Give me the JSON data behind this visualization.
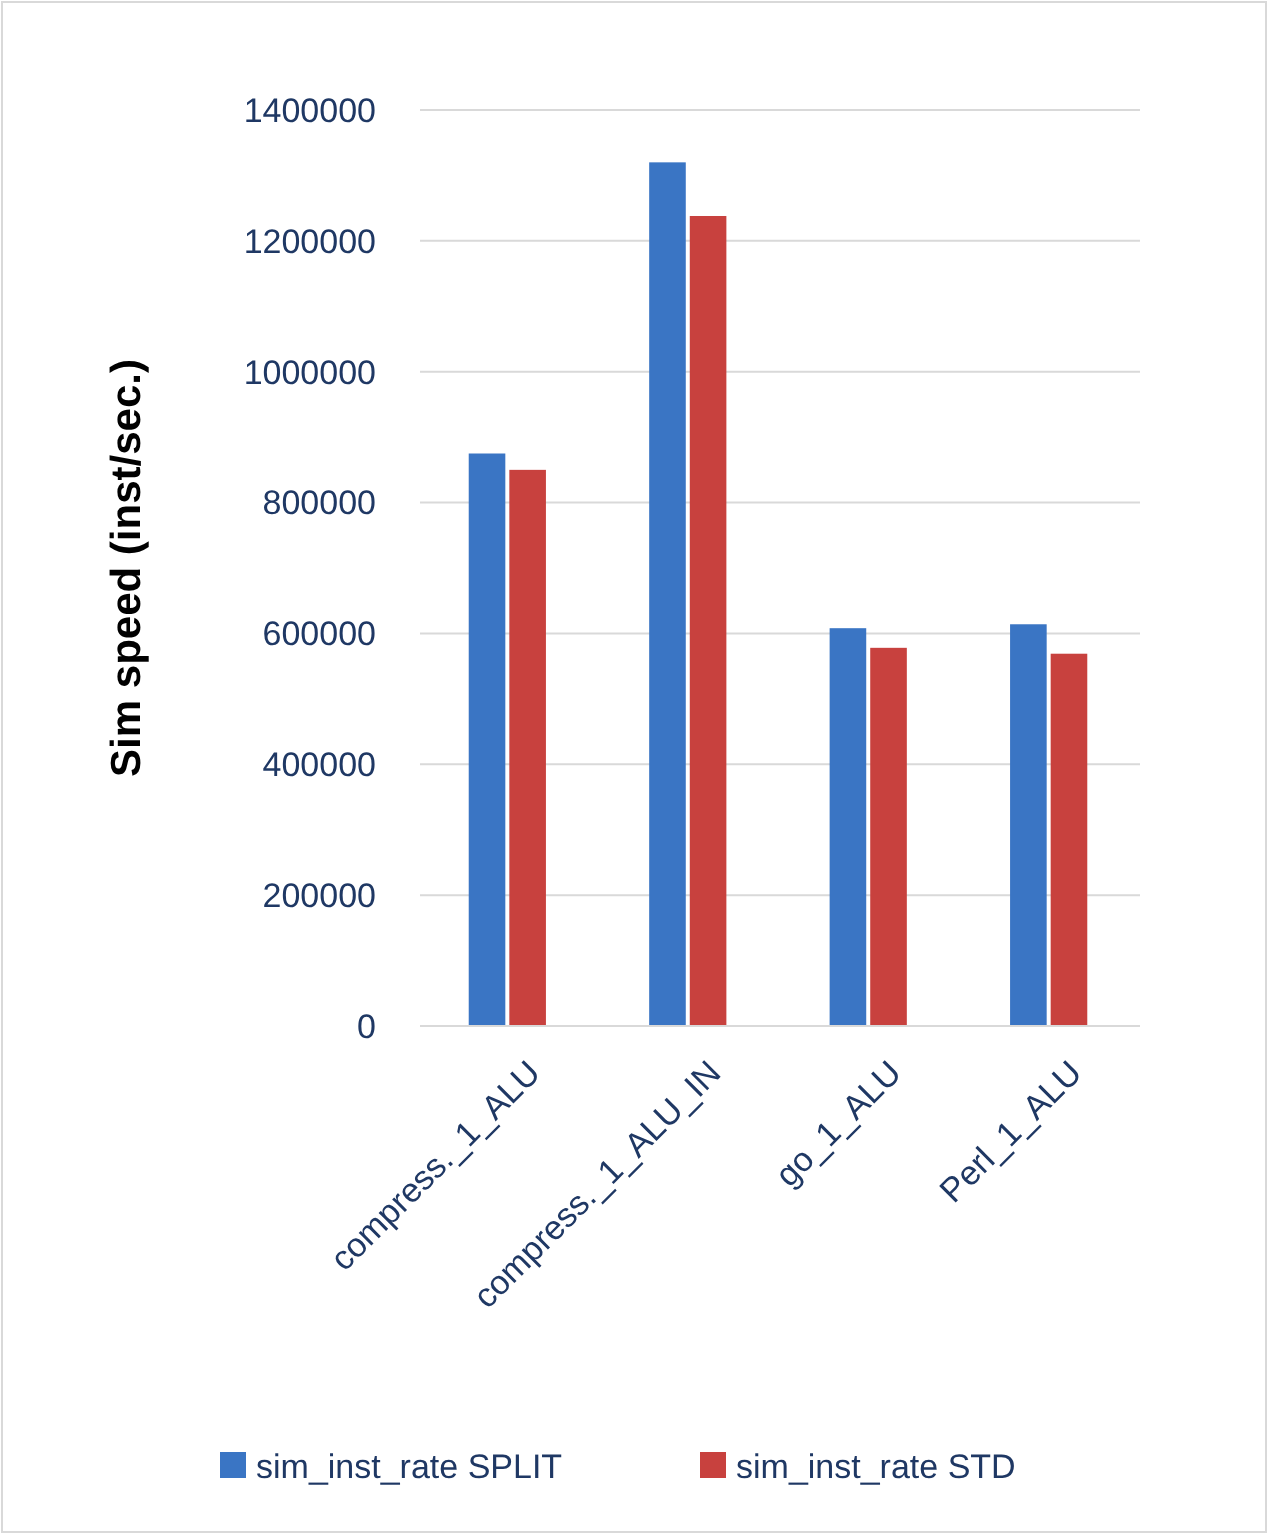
{
  "chart_data": {
    "type": "bar",
    "ylabel": "Sim speed (inst/sec.)",
    "categories": [
      "compress._1_ALU",
      "compress._1_ALU_IN",
      "go_1_ALU",
      "Perl_1_ALU"
    ],
    "series": [
      {
        "name": "sim_inst_rate SPLIT",
        "color": "#3a75c4",
        "values": [
          875000,
          1320000,
          608000,
          614000
        ]
      },
      {
        "name": "sim_inst_rate STD",
        "color": "#c8413e",
        "values": [
          850000,
          1238000,
          578000,
          569000
        ]
      }
    ],
    "ylim": [
      0,
      1400000
    ],
    "yticks": [
      0,
      200000,
      400000,
      600000,
      800000,
      1000000,
      1200000,
      1400000
    ],
    "grid": "y",
    "legend": "bottom"
  }
}
